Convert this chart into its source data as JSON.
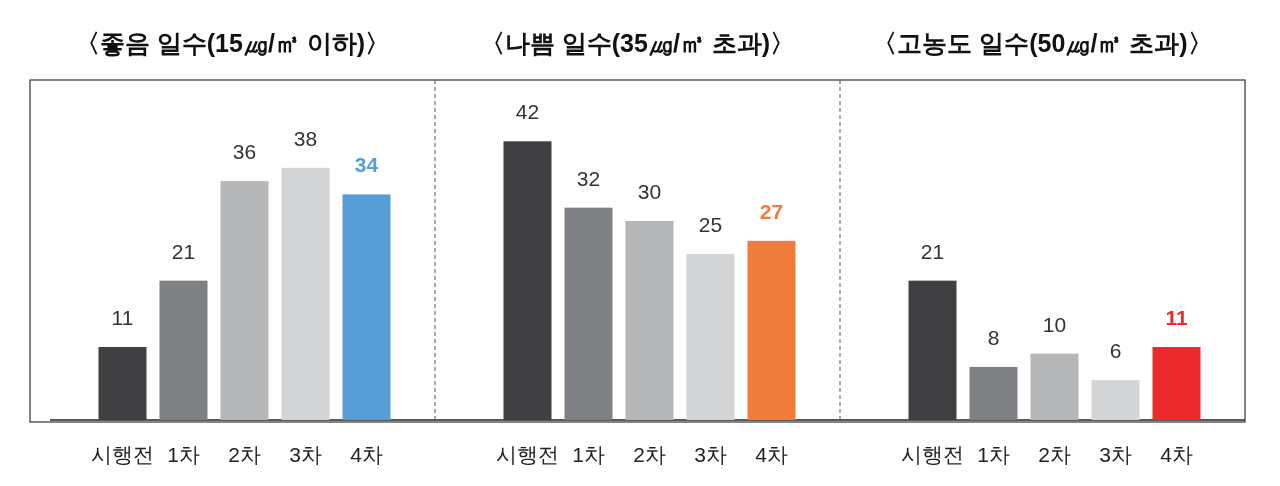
{
  "chart_data": [
    {
      "type": "bar",
      "title": "〈좋음 일수(15㎍/㎥ 이하)〉",
      "categories": [
        "시행전",
        "1차",
        "2차",
        "3차",
        "4차"
      ],
      "values": [
        11,
        21,
        36,
        38,
        34
      ],
      "colors": [
        "#404042",
        "#7f8083",
        "#b5b6b8",
        "#d3d4d6",
        "#579ed6"
      ],
      "data_labels": true
    },
    {
      "type": "bar",
      "title": "〈나쁨 일수(35㎍/㎥ 초과)〉",
      "categories": [
        "시행전",
        "1차",
        "2차",
        "3차",
        "4차"
      ],
      "values": [
        42,
        32,
        30,
        25,
        27
      ],
      "colors": [
        "#404042",
        "#7f8083",
        "#b5b6b8",
        "#d3d4d6",
        "#f07c3c"
      ],
      "data_labels": true
    },
    {
      "type": "bar",
      "title": "〈고농도 일수(50㎍/㎥ 초과)〉",
      "categories": [
        "시행전",
        "1차",
        "2차",
        "3차",
        "4차"
      ],
      "values": [
        21,
        8,
        10,
        6,
        11
      ],
      "colors": [
        "#404042",
        "#7f8083",
        "#b5b6b8",
        "#d3d4d6",
        "#ec2a2b"
      ],
      "data_labels": true
    }
  ]
}
